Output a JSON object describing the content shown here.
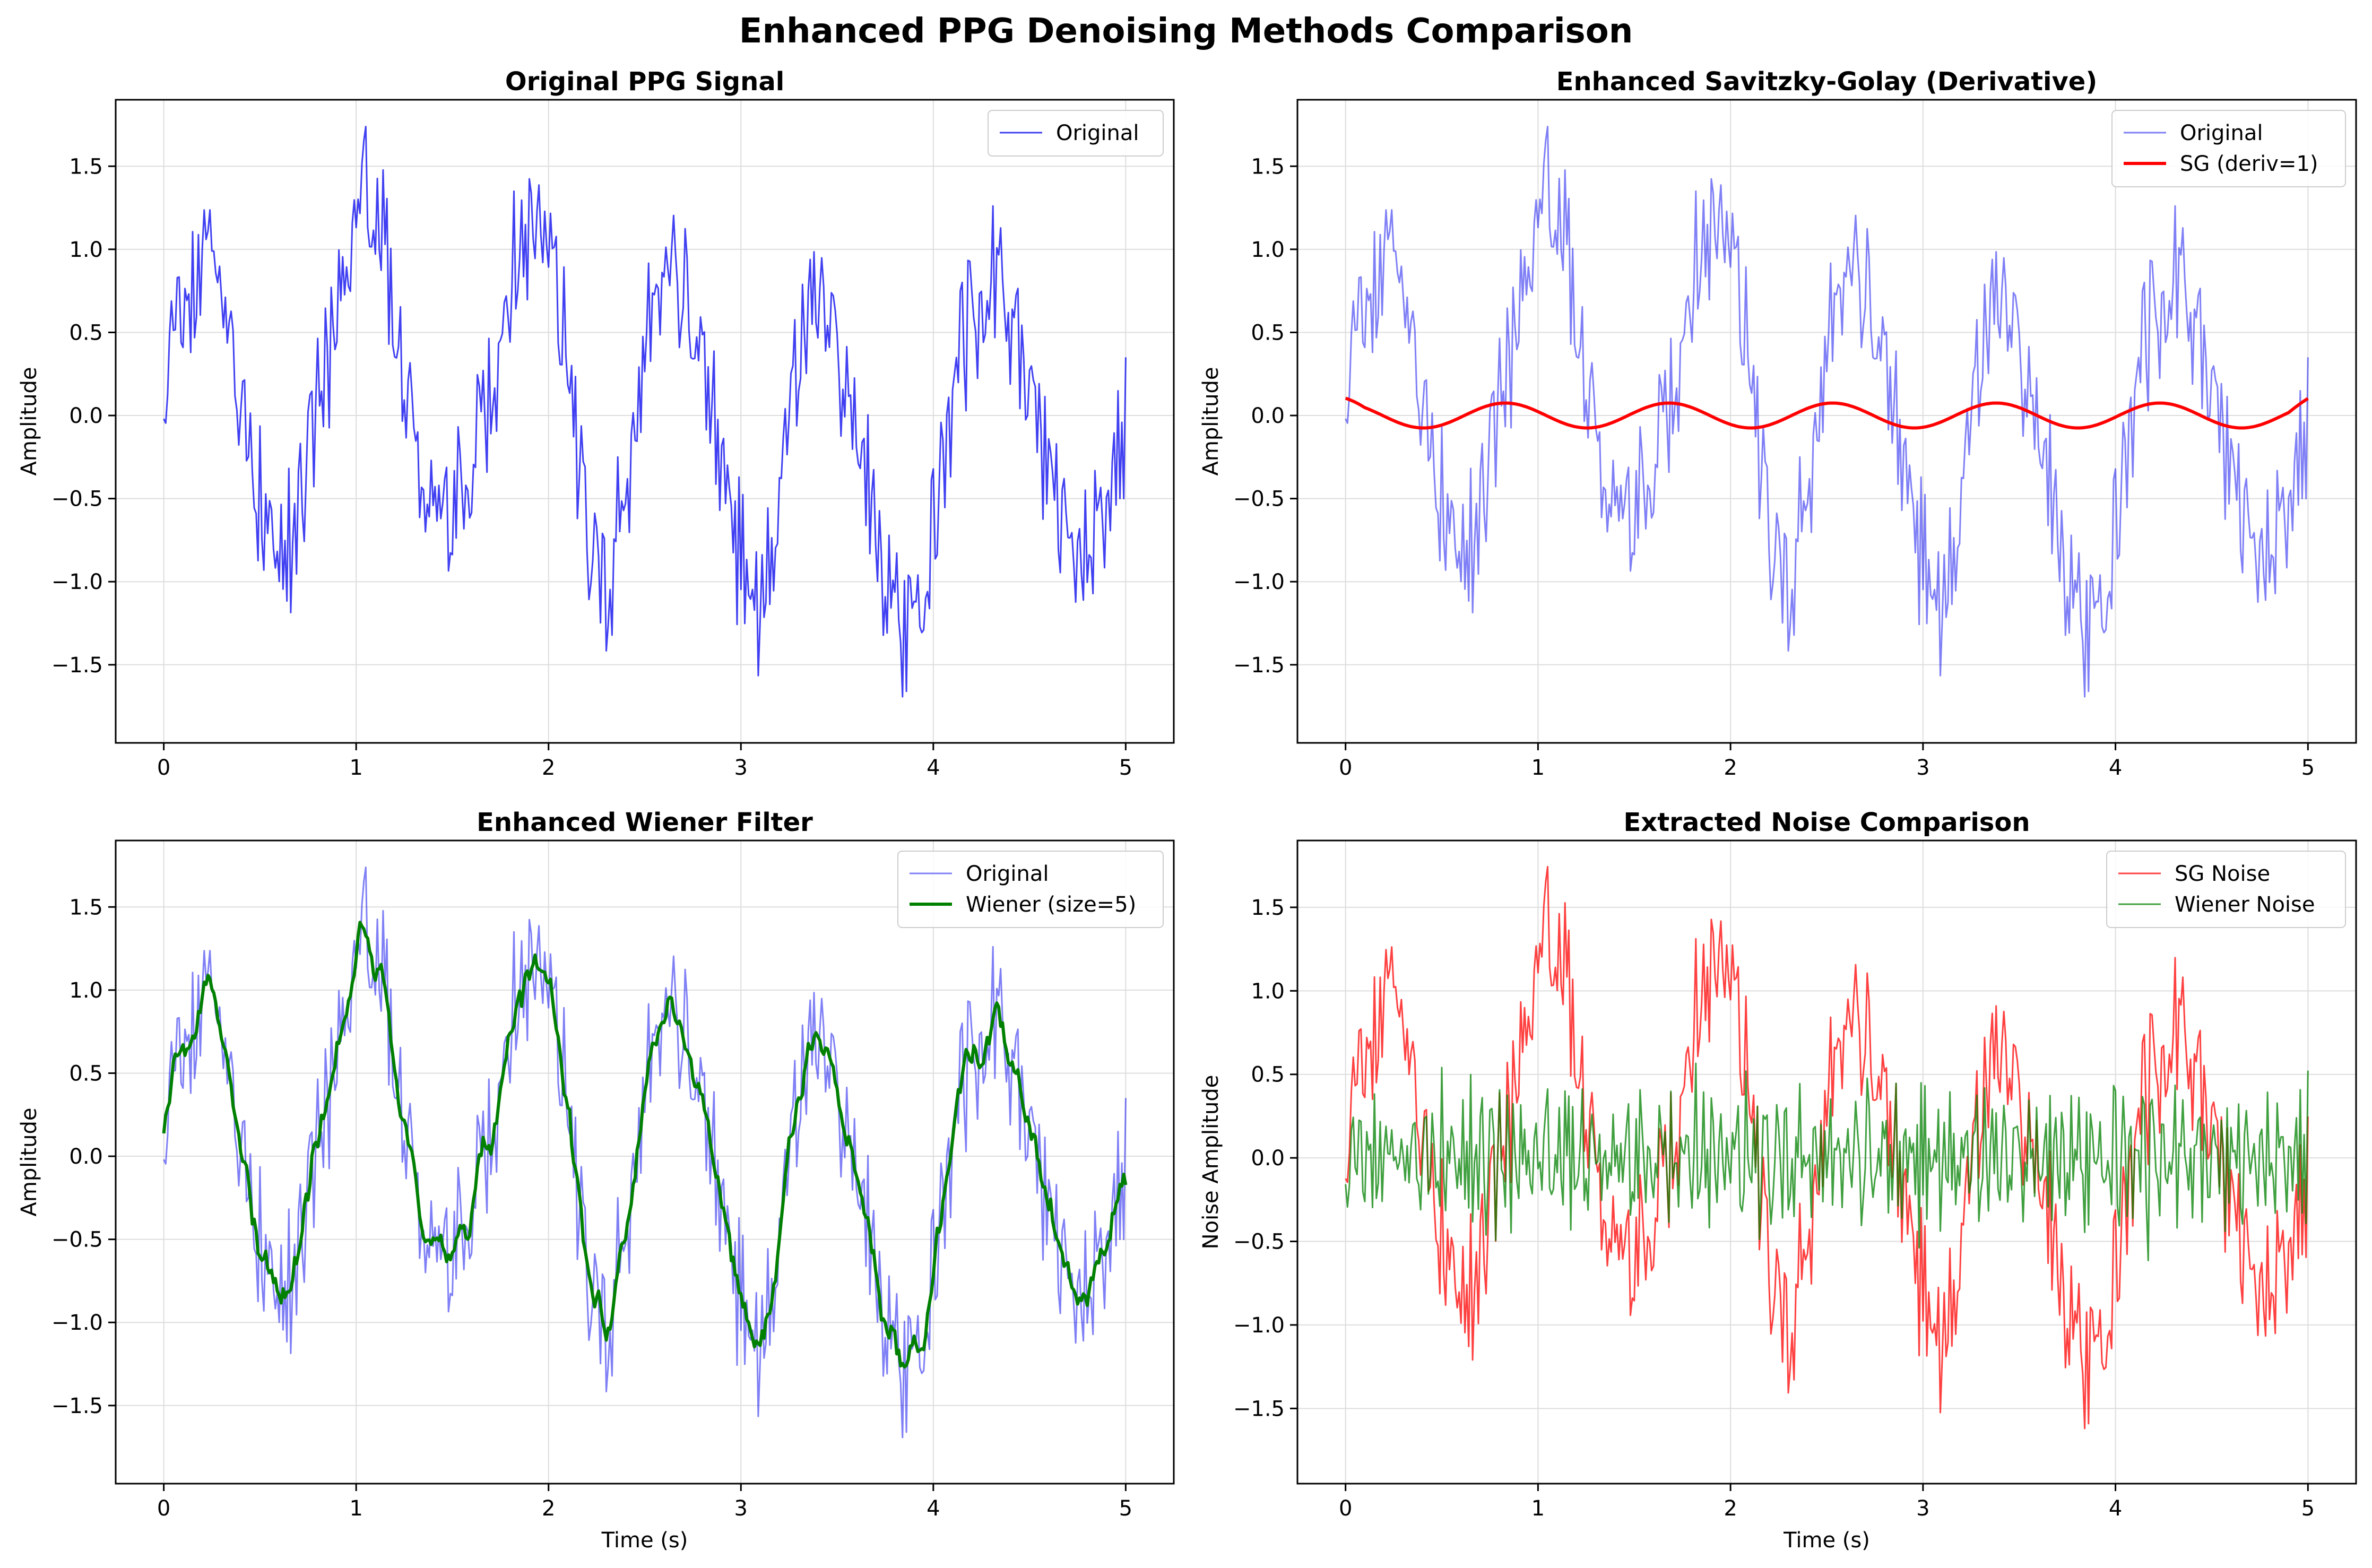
{
  "figure": {
    "suptitle": "Enhanced PPG Denoising Methods Comparison"
  },
  "chart_data": [
    {
      "type": "line",
      "title": "Original PPG Signal",
      "xlabel": "",
      "ylabel": "Amplitude",
      "xlim": [
        -0.25,
        5.25
      ],
      "ylim": [
        -1.97,
        1.9
      ],
      "xticks": [
        0,
        1,
        2,
        3,
        4,
        5
      ],
      "xtick_labels": [
        "0",
        "1",
        "2",
        "3",
        "4",
        "5"
      ],
      "yticks": [
        -1.5,
        -1.0,
        -0.5,
        0.0,
        0.5,
        1.0,
        1.5
      ],
      "ytick_labels": [
        "−1.5",
        "−1.0",
        "−0.5",
        "0.0",
        "0.5",
        "1.0",
        "1.5"
      ],
      "grid": true,
      "legend": "top-right",
      "series": [
        {
          "name": "Original",
          "kind": "original",
          "color": "#0000ee",
          "opacity": 0.75,
          "width": 3
        }
      ]
    },
    {
      "type": "line",
      "title": "Enhanced Savitzky-Golay (Derivative)",
      "xlabel": "",
      "ylabel": "Amplitude",
      "xlim": [
        -0.25,
        5.25
      ],
      "ylim": [
        -1.97,
        1.9
      ],
      "xticks": [
        0,
        1,
        2,
        3,
        4,
        5
      ],
      "xtick_labels": [
        "0",
        "1",
        "2",
        "3",
        "4",
        "5"
      ],
      "yticks": [
        -1.5,
        -1.0,
        -0.5,
        0.0,
        0.5,
        1.0,
        1.5
      ],
      "ytick_labels": [
        "−1.5",
        "−1.0",
        "−0.5",
        "0.0",
        "0.5",
        "1.0",
        "1.5"
      ],
      "grid": true,
      "legend": "top-right",
      "series": [
        {
          "name": "Original",
          "kind": "original",
          "color": "#0000ee",
          "opacity": 0.5,
          "width": 3
        },
        {
          "name": "SG (deriv=1)",
          "kind": "sg",
          "color": "#ff0000",
          "opacity": 1.0,
          "width": 6
        }
      ]
    },
    {
      "type": "line",
      "title": "Enhanced Wiener Filter",
      "xlabel": "Time (s)",
      "ylabel": "Amplitude",
      "xlim": [
        -0.25,
        5.25
      ],
      "ylim": [
        -1.97,
        1.9
      ],
      "xticks": [
        0,
        1,
        2,
        3,
        4,
        5
      ],
      "xtick_labels": [
        "0",
        "1",
        "2",
        "3",
        "4",
        "5"
      ],
      "yticks": [
        -1.5,
        -1.0,
        -0.5,
        0.0,
        0.5,
        1.0,
        1.5
      ],
      "ytick_labels": [
        "−1.5",
        "−1.0",
        "−0.5",
        "0.0",
        "0.5",
        "1.0",
        "1.5"
      ],
      "grid": true,
      "legend": "top-right",
      "series": [
        {
          "name": "Original",
          "kind": "original",
          "color": "#0000ee",
          "opacity": 0.5,
          "width": 3
        },
        {
          "name": "Wiener (size=5)",
          "kind": "wiener",
          "color": "#008000",
          "opacity": 1.0,
          "width": 6
        }
      ]
    },
    {
      "type": "line",
      "title": "Extracted Noise Comparison",
      "xlabel": "Time (s)",
      "ylabel": "Noise Amplitude",
      "xlim": [
        -0.25,
        5.25
      ],
      "ylim": [
        -1.95,
        1.9
      ],
      "xticks": [
        0,
        1,
        2,
        3,
        4,
        5
      ],
      "xtick_labels": [
        "0",
        "1",
        "2",
        "3",
        "4",
        "5"
      ],
      "yticks": [
        -1.5,
        -1.0,
        -0.5,
        0.0,
        0.5,
        1.0,
        1.5
      ],
      "ytick_labels": [
        "−1.5",
        "−1.0",
        "−0.5",
        "0.0",
        "0.5",
        "1.0",
        "1.5"
      ],
      "grid": true,
      "legend": "top-right",
      "series": [
        {
          "name": "SG Noise",
          "kind": "sgnoise",
          "color": "#ff0000",
          "opacity": 0.75,
          "width": 3
        },
        {
          "name": "Wiener Noise",
          "kind": "wienernoise",
          "color": "#008000",
          "opacity": 0.75,
          "width": 3
        }
      ]
    }
  ]
}
